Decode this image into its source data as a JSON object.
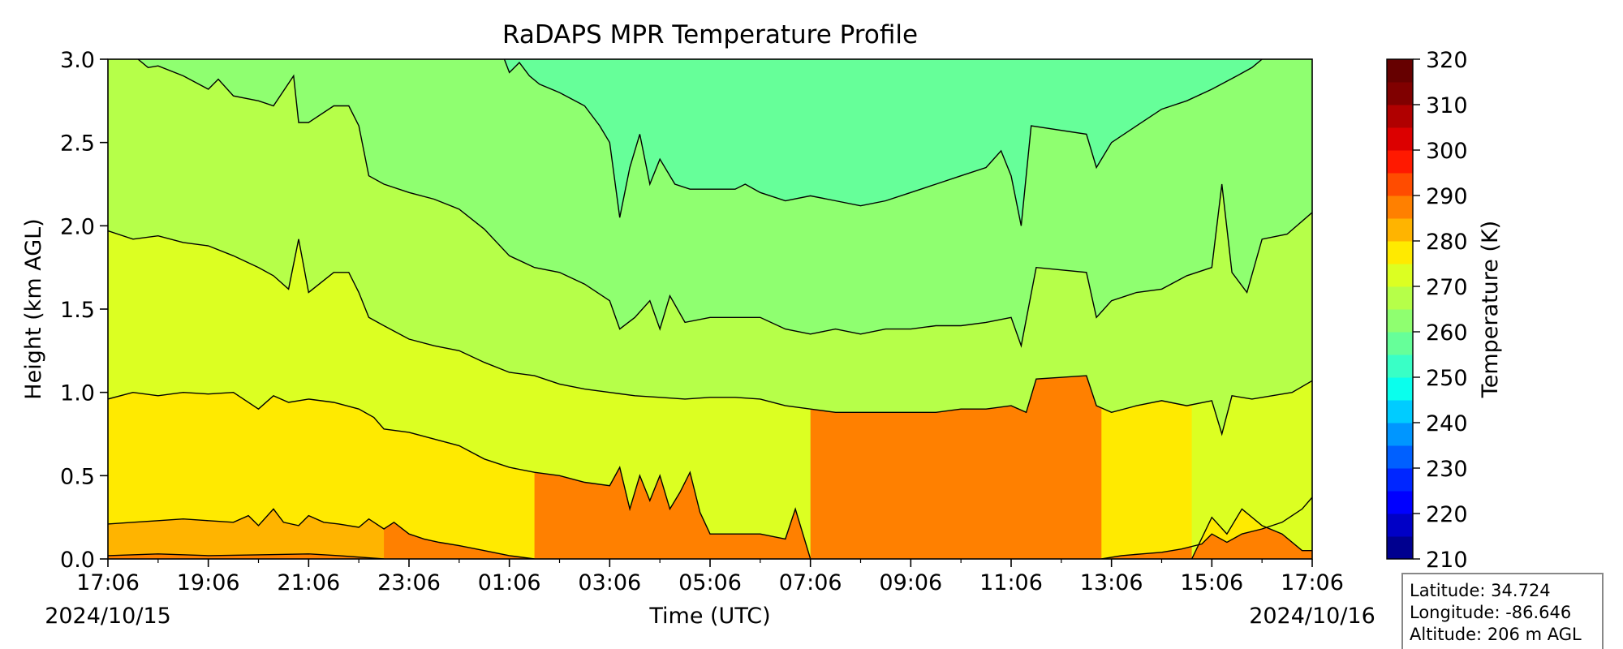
{
  "chart_data": {
    "type": "heatmap",
    "subtype": "filled-contour",
    "title": "RaDAPS MPR Temperature Profile",
    "xlabel": "Time (UTC)",
    "ylabel": "Height (km AGL)",
    "x_tick_labels": [
      "17:06",
      "19:06",
      "21:06",
      "23:06",
      "01:06",
      "03:06",
      "05:06",
      "07:06",
      "09:06",
      "11:06",
      "13:06",
      "15:06",
      "17:06"
    ],
    "x_hours": [
      0,
      2,
      4,
      6,
      8,
      10,
      12,
      14,
      16,
      18,
      20,
      22,
      24
    ],
    "xlim_hours": [
      0,
      24
    ],
    "start_date": "2024/10/15",
    "end_date": "2024/10/16",
    "y_ticks": [
      "0.0",
      "0.5",
      "1.0",
      "1.5",
      "2.0",
      "2.5",
      "3.0"
    ],
    "ylim": [
      0,
      3
    ],
    "colorbar": {
      "label": "Temperature (K)",
      "ticks": [
        "210",
        "220",
        "230",
        "240",
        "250",
        "260",
        "270",
        "280",
        "290",
        "300",
        "310",
        "320"
      ],
      "range": [
        210,
        320
      ],
      "levels": [
        210,
        215,
        220,
        225,
        230,
        235,
        240,
        245,
        250,
        255,
        260,
        265,
        270,
        275,
        280,
        285,
        290,
        295,
        300,
        305,
        310,
        315,
        320
      ],
      "colors": [
        "#00008f",
        "#0000c6",
        "#0000ff",
        "#0026ff",
        "#0060ff",
        "#0096ff",
        "#00ccff",
        "#0affed",
        "#39ffc6",
        "#66ff99",
        "#8fff70",
        "#b6ff49",
        "#dcff22",
        "#ffea00",
        "#ffb400",
        "#ff8000",
        "#ff4c00",
        "#ff1900",
        "#dc0000",
        "#b00000",
        "#800000",
        "#660000"
      ]
    },
    "contours": [
      {
        "level": 290,
        "upper_color": "#ffb400",
        "points": [
          [
            0,
            0.02
          ],
          [
            1,
            0.03
          ],
          [
            2,
            0.02
          ],
          [
            3,
            0.025
          ],
          [
            4,
            0.03
          ],
          [
            4.6,
            0.02
          ],
          [
            5.5,
            0.0
          ]
        ]
      },
      {
        "level": 285,
        "upper_color": "#ffea00",
        "points": [
          [
            0,
            0.21
          ],
          [
            0.5,
            0.22
          ],
          [
            1,
            0.23
          ],
          [
            1.5,
            0.24
          ],
          [
            2,
            0.23
          ],
          [
            2.5,
            0.22
          ],
          [
            2.8,
            0.26
          ],
          [
            3,
            0.2
          ],
          [
            3.3,
            0.3
          ],
          [
            3.5,
            0.22
          ],
          [
            3.8,
            0.2
          ],
          [
            4,
            0.26
          ],
          [
            4.3,
            0.22
          ],
          [
            4.6,
            0.21
          ],
          [
            5,
            0.19
          ],
          [
            5.2,
            0.24
          ],
          [
            5.5,
            0.18
          ],
          [
            5.7,
            0.22
          ],
          [
            6,
            0.15
          ],
          [
            6.3,
            0.12
          ],
          [
            6.6,
            0.1
          ],
          [
            7,
            0.08
          ],
          [
            7.5,
            0.05
          ],
          [
            8,
            0.02
          ],
          [
            8.5,
            0.0
          ]
        ]
      },
      {
        "level": 285,
        "upper_color": "#ffea00",
        "points": [
          [
            19.8,
            0.0
          ],
          [
            20.2,
            0.02
          ],
          [
            20.6,
            0.03
          ],
          [
            21,
            0.04
          ],
          [
            21.4,
            0.06
          ],
          [
            21.8,
            0.09
          ],
          [
            22,
            0.15
          ],
          [
            22.3,
            0.1
          ],
          [
            22.6,
            0.15
          ],
          [
            23,
            0.18
          ],
          [
            23.4,
            0.22
          ],
          [
            23.8,
            0.3
          ],
          [
            24,
            0.37
          ]
        ]
      },
      {
        "level": 280,
        "upper_color": "#dcff22",
        "points": [
          [
            0,
            0.96
          ],
          [
            0.5,
            1.0
          ],
          [
            1,
            0.98
          ],
          [
            1.5,
            1.0
          ],
          [
            2,
            0.99
          ],
          [
            2.5,
            1.0
          ],
          [
            3,
            0.9
          ],
          [
            3.3,
            0.98
          ],
          [
            3.6,
            0.94
          ],
          [
            4,
            0.96
          ],
          [
            4.5,
            0.94
          ],
          [
            5,
            0.9
          ],
          [
            5.3,
            0.85
          ],
          [
            5.5,
            0.78
          ],
          [
            6,
            0.76
          ],
          [
            6.5,
            0.72
          ],
          [
            7,
            0.68
          ],
          [
            7.5,
            0.6
          ],
          [
            8,
            0.55
          ],
          [
            8.5,
            0.52
          ],
          [
            9,
            0.5
          ],
          [
            9.5,
            0.46
          ],
          [
            10,
            0.44
          ],
          [
            10.2,
            0.55
          ],
          [
            10.4,
            0.3
          ],
          [
            10.6,
            0.5
          ],
          [
            10.8,
            0.35
          ],
          [
            11,
            0.5
          ],
          [
            11.2,
            0.3
          ],
          [
            11.4,
            0.4
          ],
          [
            11.6,
            0.52
          ],
          [
            11.8,
            0.28
          ],
          [
            12,
            0.15
          ],
          [
            13,
            0.15
          ],
          [
            13.5,
            0.12
          ],
          [
            13.7,
            0.3
          ],
          [
            14,
            0.0
          ]
        ]
      },
      {
        "level": 280,
        "upper_color": "#dcff22",
        "points": [
          [
            21.6,
            0.0
          ],
          [
            22,
            0.25
          ],
          [
            22.3,
            0.15
          ],
          [
            22.6,
            0.3
          ],
          [
            23,
            0.2
          ],
          [
            23.4,
            0.15
          ],
          [
            23.8,
            0.05
          ],
          [
            24,
            0.05
          ]
        ]
      },
      {
        "level": 275,
        "upper_color": "#b6ff49",
        "points": [
          [
            0,
            1.97
          ],
          [
            0.5,
            1.92
          ],
          [
            1,
            1.94
          ],
          [
            1.5,
            1.9
          ],
          [
            2,
            1.88
          ],
          [
            2.5,
            1.82
          ],
          [
            3,
            1.75
          ],
          [
            3.3,
            1.7
          ],
          [
            3.6,
            1.62
          ],
          [
            3.8,
            1.92
          ],
          [
            4,
            1.6
          ],
          [
            4.5,
            1.72
          ],
          [
            4.8,
            1.72
          ],
          [
            5,
            1.6
          ],
          [
            5.2,
            1.45
          ],
          [
            5.5,
            1.4
          ],
          [
            6,
            1.32
          ],
          [
            6.5,
            1.28
          ],
          [
            7,
            1.25
          ],
          [
            7.5,
            1.18
          ],
          [
            8,
            1.12
          ],
          [
            8.5,
            1.1
          ],
          [
            9,
            1.05
          ],
          [
            9.5,
            1.02
          ],
          [
            10,
            1.0
          ],
          [
            10.5,
            0.98
          ],
          [
            11,
            0.97
          ],
          [
            11.5,
            0.96
          ],
          [
            12,
            0.97
          ],
          [
            12.5,
            0.97
          ],
          [
            13,
            0.96
          ],
          [
            13.5,
            0.92
          ],
          [
            14,
            0.9
          ],
          [
            14.5,
            0.88
          ],
          [
            15,
            0.88
          ],
          [
            15.5,
            0.88
          ],
          [
            16,
            0.88
          ],
          [
            16.5,
            0.88
          ],
          [
            17,
            0.9
          ],
          [
            17.5,
            0.9
          ],
          [
            18,
            0.92
          ],
          [
            18.3,
            0.88
          ],
          [
            18.5,
            1.08
          ],
          [
            19.5,
            1.1
          ],
          [
            19.7,
            0.92
          ],
          [
            20,
            0.88
          ],
          [
            20.5,
            0.92
          ],
          [
            21,
            0.95
          ],
          [
            21.5,
            0.92
          ],
          [
            22,
            0.95
          ],
          [
            22.2,
            0.75
          ],
          [
            22.4,
            0.98
          ],
          [
            22.8,
            0.96
          ],
          [
            23.2,
            0.98
          ],
          [
            23.6,
            1.0
          ],
          [
            24,
            1.07
          ]
        ]
      },
      {
        "level": 270,
        "upper_color": "#8fff70",
        "points": [
          [
            0.6,
            3.0
          ],
          [
            0.8,
            2.95
          ],
          [
            1,
            2.96
          ],
          [
            1.5,
            2.9
          ],
          [
            2,
            2.82
          ],
          [
            2.2,
            2.88
          ],
          [
            2.5,
            2.78
          ],
          [
            3,
            2.75
          ],
          [
            3.3,
            2.72
          ],
          [
            3.7,
            2.9
          ],
          [
            3.8,
            2.62
          ],
          [
            4,
            2.62
          ],
          [
            4.5,
            2.72
          ],
          [
            4.8,
            2.72
          ],
          [
            5,
            2.6
          ],
          [
            5.2,
            2.3
          ],
          [
            5.5,
            2.25
          ],
          [
            6,
            2.2
          ],
          [
            6.5,
            2.16
          ],
          [
            7,
            2.1
          ],
          [
            7.5,
            1.98
          ],
          [
            8,
            1.82
          ],
          [
            8.5,
            1.75
          ],
          [
            9,
            1.72
          ],
          [
            9.5,
            1.65
          ],
          [
            10,
            1.55
          ],
          [
            10.2,
            1.38
          ],
          [
            10.5,
            1.45
          ],
          [
            10.8,
            1.55
          ],
          [
            11,
            1.38
          ],
          [
            11.2,
            1.58
          ],
          [
            11.5,
            1.42
          ],
          [
            12,
            1.45
          ],
          [
            13,
            1.45
          ],
          [
            13.5,
            1.38
          ],
          [
            14,
            1.35
          ],
          [
            14.5,
            1.38
          ],
          [
            15,
            1.35
          ],
          [
            15.5,
            1.38
          ],
          [
            16,
            1.38
          ],
          [
            16.5,
            1.4
          ],
          [
            17,
            1.4
          ],
          [
            17.5,
            1.42
          ],
          [
            18,
            1.45
          ],
          [
            18.2,
            1.28
          ],
          [
            18.5,
            1.75
          ],
          [
            19.5,
            1.72
          ],
          [
            19.7,
            1.45
          ],
          [
            20,
            1.55
          ],
          [
            20.5,
            1.6
          ],
          [
            21,
            1.62
          ],
          [
            21.5,
            1.7
          ],
          [
            22,
            1.75
          ],
          [
            22.2,
            2.25
          ],
          [
            22.4,
            1.72
          ],
          [
            22.7,
            1.6
          ],
          [
            23,
            1.92
          ],
          [
            23.5,
            1.95
          ],
          [
            24,
            2.08
          ]
        ]
      },
      {
        "level": 265,
        "upper_color": "#66ff99",
        "points": [
          [
            7.9,
            3.0
          ],
          [
            8,
            2.92
          ],
          [
            8.2,
            2.98
          ],
          [
            8.4,
            2.9
          ],
          [
            8.6,
            2.85
          ],
          [
            9,
            2.8
          ],
          [
            9.5,
            2.72
          ],
          [
            9.8,
            2.6
          ],
          [
            10,
            2.5
          ],
          [
            10.2,
            2.05
          ],
          [
            10.4,
            2.35
          ],
          [
            10.6,
            2.55
          ],
          [
            10.8,
            2.25
          ],
          [
            11,
            2.4
          ],
          [
            11.3,
            2.25
          ],
          [
            11.6,
            2.22
          ],
          [
            12,
            2.22
          ],
          [
            12.5,
            2.22
          ],
          [
            12.7,
            2.25
          ],
          [
            13,
            2.2
          ],
          [
            13.5,
            2.15
          ],
          [
            14,
            2.18
          ],
          [
            14.5,
            2.15
          ],
          [
            15,
            2.12
          ],
          [
            15.5,
            2.15
          ],
          [
            16,
            2.2
          ],
          [
            16.5,
            2.25
          ],
          [
            17,
            2.3
          ],
          [
            17.5,
            2.35
          ],
          [
            17.8,
            2.45
          ],
          [
            18,
            2.3
          ],
          [
            18.2,
            2.0
          ],
          [
            18.4,
            2.6
          ],
          [
            19.5,
            2.55
          ],
          [
            19.7,
            2.35
          ],
          [
            20,
            2.5
          ],
          [
            20.5,
            2.6
          ],
          [
            21,
            2.7
          ],
          [
            21.5,
            2.75
          ],
          [
            22,
            2.82
          ],
          [
            22.5,
            2.9
          ],
          [
            22.8,
            2.95
          ],
          [
            23,
            3.0
          ]
        ]
      }
    ],
    "info_box": {
      "latitude": "Latitude: 34.724",
      "longitude": "Longitude: -86.646",
      "altitude": "Altitude: 206 m AGL"
    }
  }
}
